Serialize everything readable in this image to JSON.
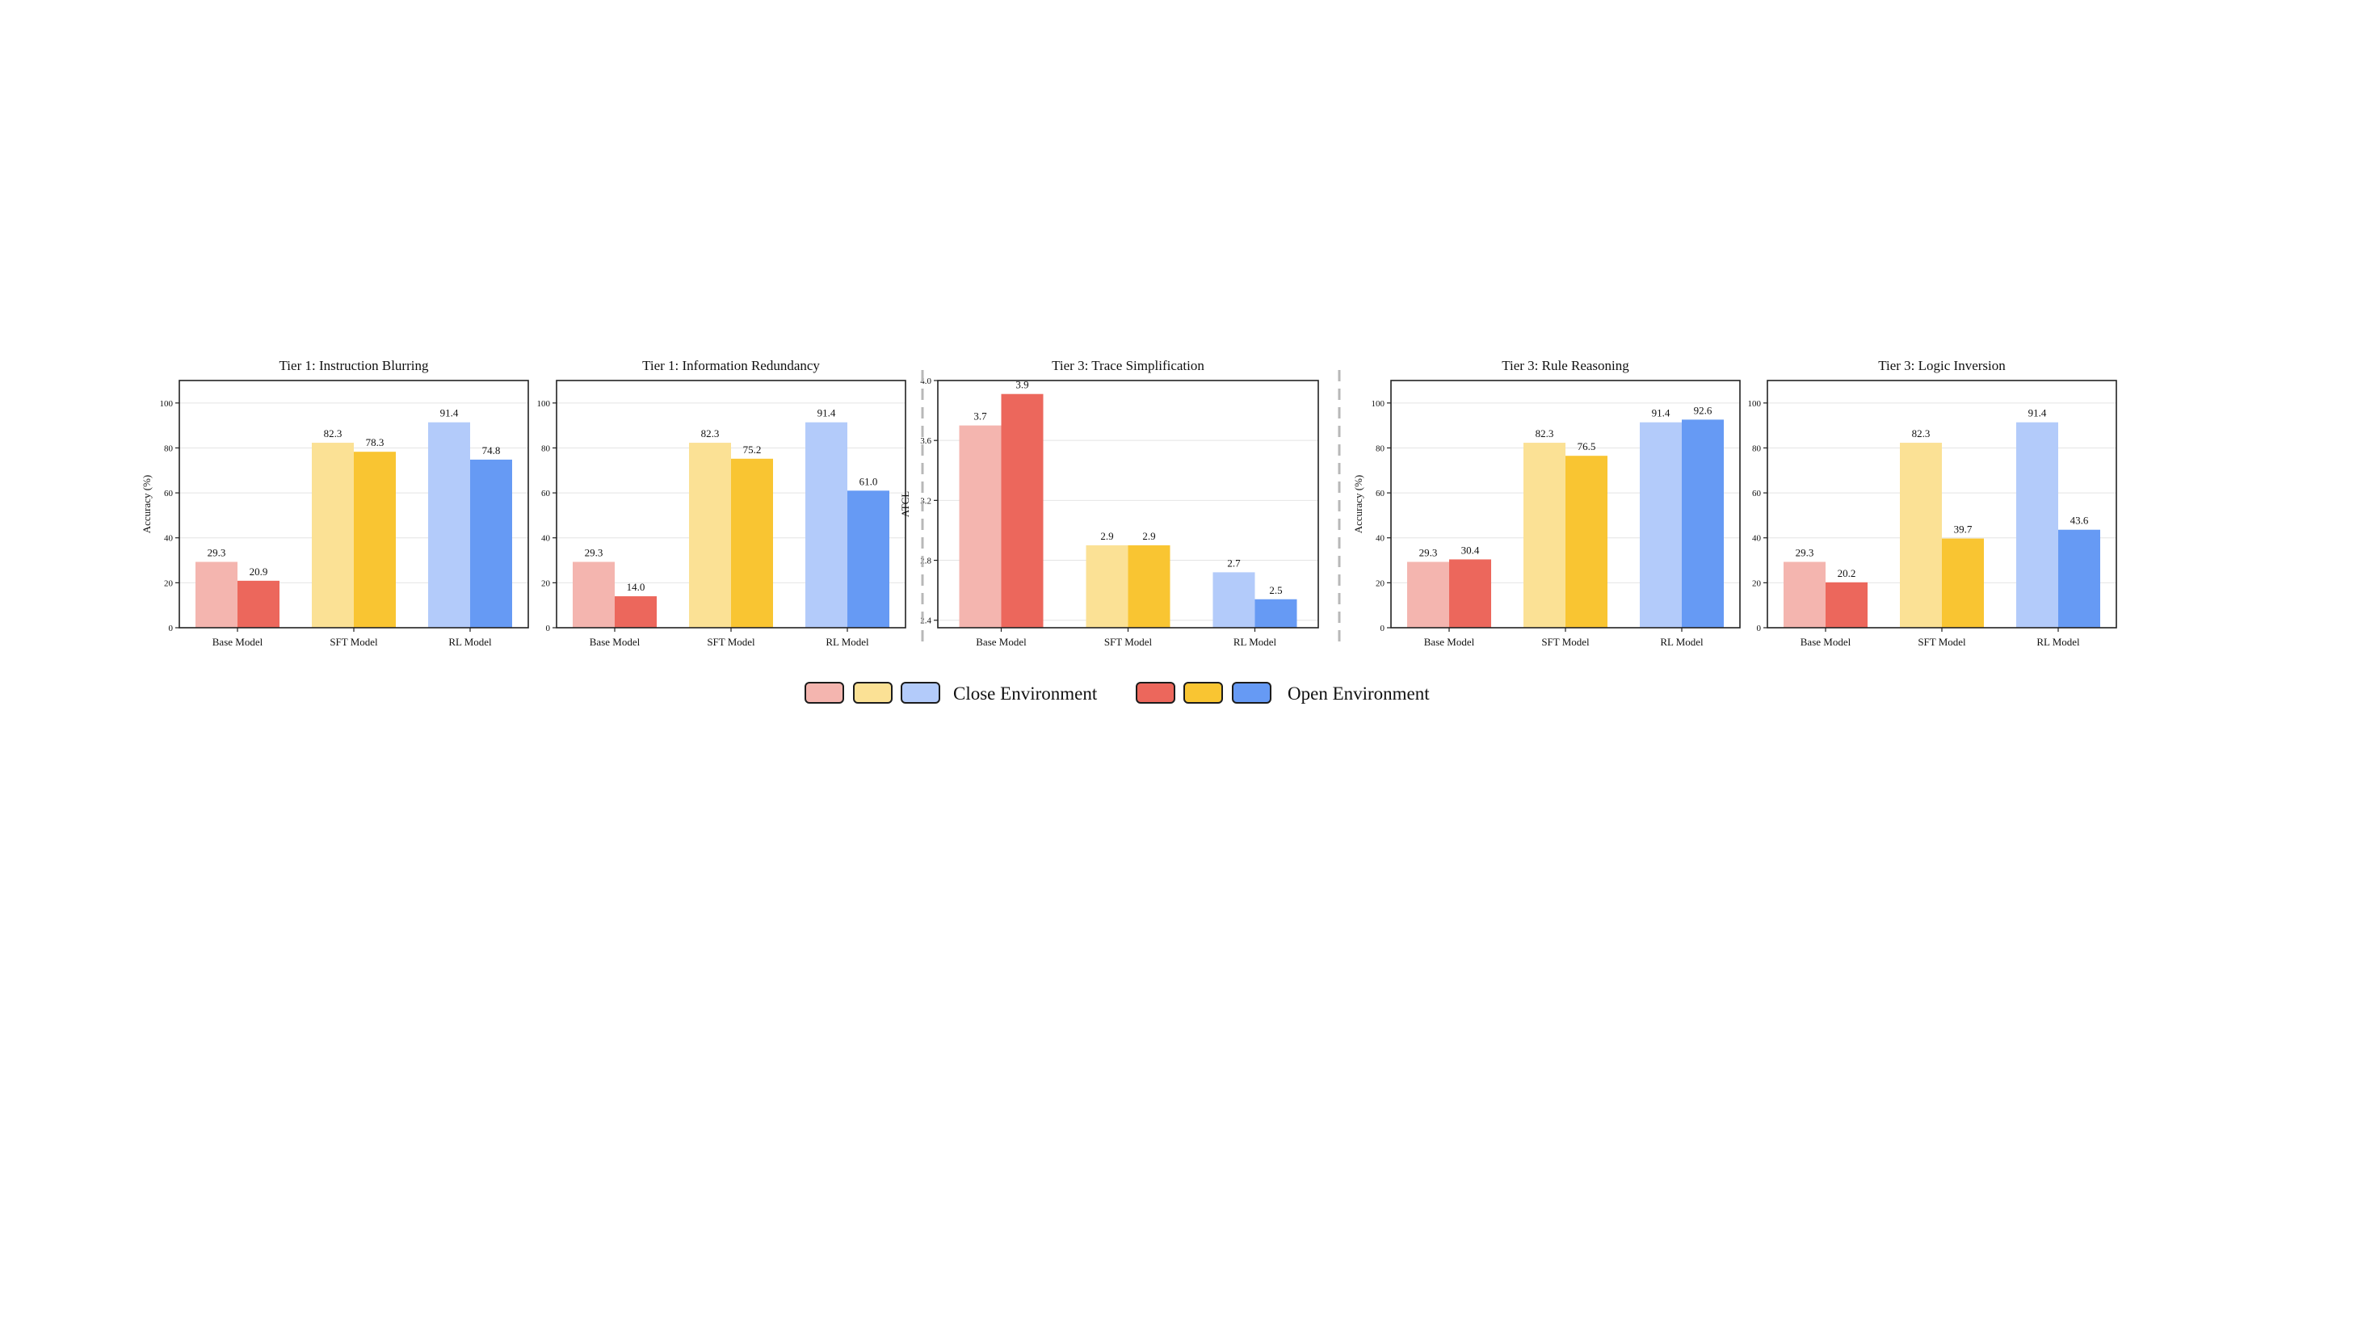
{
  "chart_data": [
    {
      "type": "bar",
      "title": "Tier 1: Instruction Blurring",
      "ylabel": "Accuracy (%)",
      "ylim": [
        0,
        110
      ],
      "yticks": [
        0,
        20,
        40,
        60,
        80,
        100
      ],
      "grid": true,
      "categories": [
        "Base Model",
        "SFT Model",
        "RL Model"
      ],
      "series": [
        {
          "name": "Close Environment",
          "values": [
            29.3,
            82.3,
            91.4
          ],
          "labels": [
            "29.3",
            "82.3",
            "91.4"
          ]
        },
        {
          "name": "Open Environment",
          "values": [
            20.9,
            78.3,
            74.8
          ],
          "labels": [
            "20.9",
            "78.3",
            "74.8"
          ]
        }
      ]
    },
    {
      "type": "bar",
      "title": "Tier 1: Information Redundancy",
      "ylabel": "",
      "ylim": [
        0,
        110
      ],
      "yticks": [
        0,
        20,
        40,
        60,
        80,
        100
      ],
      "grid": true,
      "categories": [
        "Base Model",
        "SFT Model",
        "RL Model"
      ],
      "series": [
        {
          "name": "Close Environment",
          "values": [
            29.3,
            82.3,
            91.4
          ],
          "labels": [
            "29.3",
            "82.3",
            "91.4"
          ]
        },
        {
          "name": "Open Environment",
          "values": [
            14.0,
            75.2,
            61.0
          ],
          "labels": [
            "14.0",
            "75.2",
            "61.0"
          ]
        }
      ]
    },
    {
      "type": "bar",
      "title": "Tier 3: Trace Simplification",
      "ylabel": "ATCL",
      "ylim": [
        2.35,
        4.0
      ],
      "yticks": [
        2.4,
        2.8,
        3.2,
        3.6,
        4.0
      ],
      "ytick_labels": [
        "2.4",
        "2.8",
        "3.2",
        "3.6",
        "4.0"
      ],
      "grid": true,
      "categories": [
        "Base Model",
        "SFT Model",
        "RL Model"
      ],
      "series": [
        {
          "name": "Close Environment",
          "values": [
            3.7,
            2.9,
            2.72
          ],
          "labels": [
            "3.7",
            "2.9",
            "2.7"
          ]
        },
        {
          "name": "Open Environment",
          "values": [
            3.91,
            2.9,
            2.54
          ],
          "labels": [
            "3.9",
            "2.9",
            "2.5"
          ]
        }
      ]
    },
    {
      "type": "bar",
      "title": "Tier 3: Rule Reasoning",
      "ylabel": "Accuracy (%)",
      "ylim": [
        0,
        110
      ],
      "yticks": [
        0,
        20,
        40,
        60,
        80,
        100
      ],
      "grid": true,
      "categories": [
        "Base Model",
        "SFT Model",
        "RL Model"
      ],
      "series": [
        {
          "name": "Close Environment",
          "values": [
            29.3,
            82.3,
            91.4
          ],
          "labels": [
            "29.3",
            "82.3",
            "91.4"
          ]
        },
        {
          "name": "Open Environment",
          "values": [
            30.4,
            76.5,
            92.6
          ],
          "labels": [
            "30.4",
            "76.5",
            "92.6"
          ]
        }
      ]
    },
    {
      "type": "bar",
      "title": "Tier 3: Logic Inversion",
      "ylabel": "",
      "ylim": [
        0,
        110
      ],
      "yticks": [
        0,
        20,
        40,
        60,
        80,
        100
      ],
      "grid": true,
      "categories": [
        "Base Model",
        "SFT Model",
        "RL Model"
      ],
      "series": [
        {
          "name": "Close Environment",
          "values": [
            29.3,
            82.3,
            91.4
          ],
          "labels": [
            "29.3",
            "82.3",
            "91.4"
          ]
        },
        {
          "name": "Open Environment",
          "values": [
            20.2,
            39.7,
            43.6
          ],
          "labels": [
            "20.2",
            "39.7",
            "43.6"
          ]
        }
      ]
    }
  ],
  "colors": {
    "close": [
      "#f4b5af",
      "#fbe195",
      "#b3cbfa"
    ],
    "open": [
      "#ec675c",
      "#f9c532",
      "#669af4"
    ]
  },
  "legend": {
    "placement": "bottom-center",
    "close_label": "Close Environment",
    "open_label": "Open Environment"
  }
}
